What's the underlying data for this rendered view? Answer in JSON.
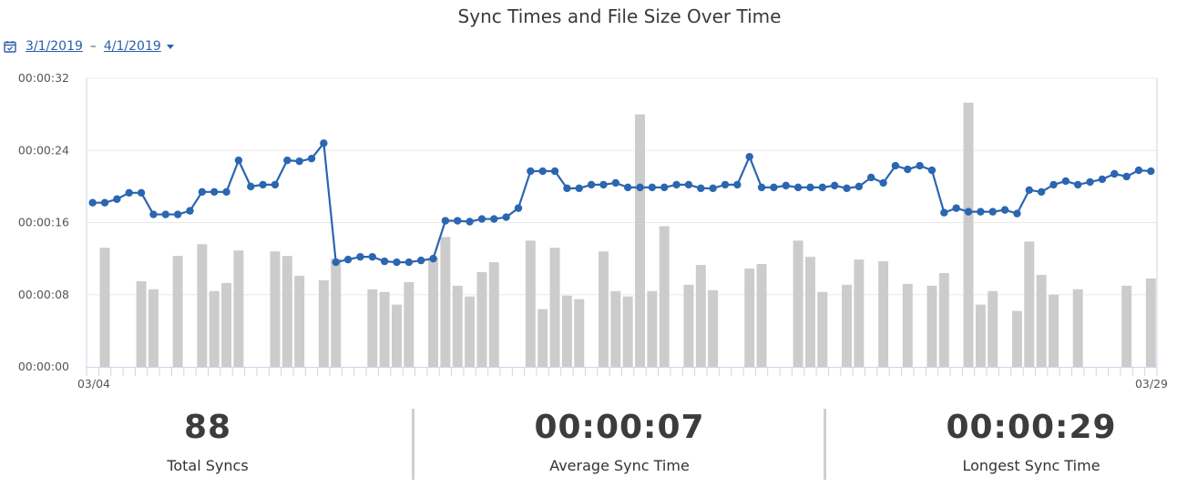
{
  "title": "Sync Times and File Size Over Time",
  "date_range": {
    "start": "3/1/2019",
    "separator": "–",
    "end": "4/1/2019",
    "icon": "calendar-icon"
  },
  "stats": [
    {
      "value": "88",
      "label": "Total Syncs"
    },
    {
      "value": "00:00:07",
      "label": "Average Sync Time"
    },
    {
      "value": "00:00:29",
      "label": "Longest Sync Time"
    }
  ],
  "chart_data": {
    "type": "line",
    "ylim_seconds": [
      0,
      32
    ],
    "yticks": [
      "00:00:00",
      "00:00:08",
      "00:00:16",
      "00:00:24",
      "00:00:32"
    ],
    "x_start_label": "03/04",
    "x_end_label": "03/29",
    "colors": {
      "line": "#2b66b0",
      "bar": "#cccccc",
      "grid": "#e8e8e8",
      "axis": "#ccd6eb"
    },
    "series": [
      {
        "type": "bar",
        "values": [
          0,
          13.2,
          0,
          0,
          9.5,
          8.6,
          0,
          12.3,
          0,
          13.6,
          8.4,
          9.3,
          12.9,
          0,
          0,
          12.8,
          12.3,
          10.1,
          0,
          9.6,
          12.0,
          0,
          0,
          8.6,
          8.3,
          6.9,
          9.4,
          0,
          12.1,
          14.4,
          9.0,
          7.8,
          10.5,
          11.6,
          0,
          0,
          14.0,
          6.4,
          13.2,
          7.9,
          7.5,
          0,
          12.8,
          8.4,
          7.8,
          28.0,
          8.4,
          15.6,
          0,
          9.1,
          11.3,
          8.5,
          0,
          0,
          10.9,
          11.4,
          0,
          0,
          14.0,
          12.2,
          8.3,
          0,
          9.1,
          11.9,
          0,
          11.7,
          0,
          9.2,
          0,
          9.0,
          10.4,
          0,
          29.3,
          6.9,
          8.4,
          0,
          6.2,
          13.9,
          10.2,
          8.0,
          0,
          8.6,
          0,
          0,
          0,
          9.0,
          0,
          9.8
        ]
      },
      {
        "type": "line",
        "values": [
          18.2,
          18.2,
          18.6,
          19.3,
          19.3,
          16.9,
          16.9,
          16.9,
          17.3,
          19.4,
          19.4,
          19.4,
          22.9,
          20.0,
          20.2,
          20.2,
          22.9,
          22.8,
          23.1,
          24.8,
          11.6,
          11.9,
          12.2,
          12.2,
          11.7,
          11.6,
          11.6,
          11.8,
          12.0,
          16.2,
          16.2,
          16.1,
          16.4,
          16.4,
          16.6,
          17.6,
          21.7,
          21.7,
          21.7,
          19.8,
          19.8,
          20.2,
          20.2,
          20.4,
          19.9,
          19.9,
          19.9,
          19.9,
          20.2,
          20.2,
          19.8,
          19.8,
          20.2,
          20.2,
          23.3,
          19.9,
          19.9,
          20.1,
          19.9,
          19.9,
          19.9,
          20.1,
          19.8,
          20.0,
          21.0,
          20.4,
          22.3,
          21.9,
          22.3,
          21.8,
          17.1,
          17.6,
          17.2,
          17.2,
          17.2,
          17.4,
          17.0,
          19.6,
          19.4,
          20.2,
          20.6,
          20.2,
          20.5,
          20.8,
          21.4,
          21.1,
          21.8,
          21.7
        ]
      }
    ]
  }
}
